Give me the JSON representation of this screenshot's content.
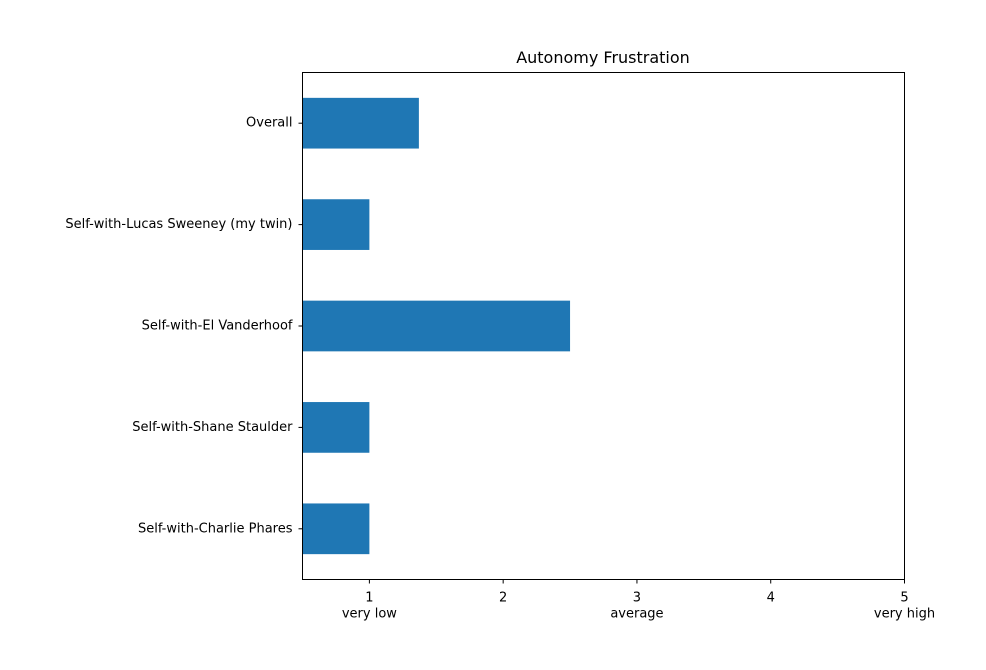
{
  "chart_data": {
    "type": "bar",
    "orientation": "horizontal",
    "title": "Autonomy Frustration",
    "xlabel": "",
    "ylabel": "",
    "categories": [
      "Overall",
      "Self-with-Lucas Sweeney (my twin)",
      "Self-with-El Vanderhoof",
      "Self-with-Shane Staulder",
      "Self-with-Charlie Phares"
    ],
    "values": [
      1.37,
      1.0,
      2.5,
      1.0,
      1.0
    ],
    "xlim": [
      0.5,
      5
    ],
    "xticks": [
      {
        "value": 1,
        "label": "1",
        "sublabel": "very low"
      },
      {
        "value": 2,
        "label": "2",
        "sublabel": ""
      },
      {
        "value": 3,
        "label": "3",
        "sublabel": "average"
      },
      {
        "value": 4,
        "label": "4",
        "sublabel": ""
      },
      {
        "value": 5,
        "label": "5",
        "sublabel": "very high"
      }
    ],
    "bar_color": "#1f77b4",
    "grid": false,
    "legend": "none"
  }
}
